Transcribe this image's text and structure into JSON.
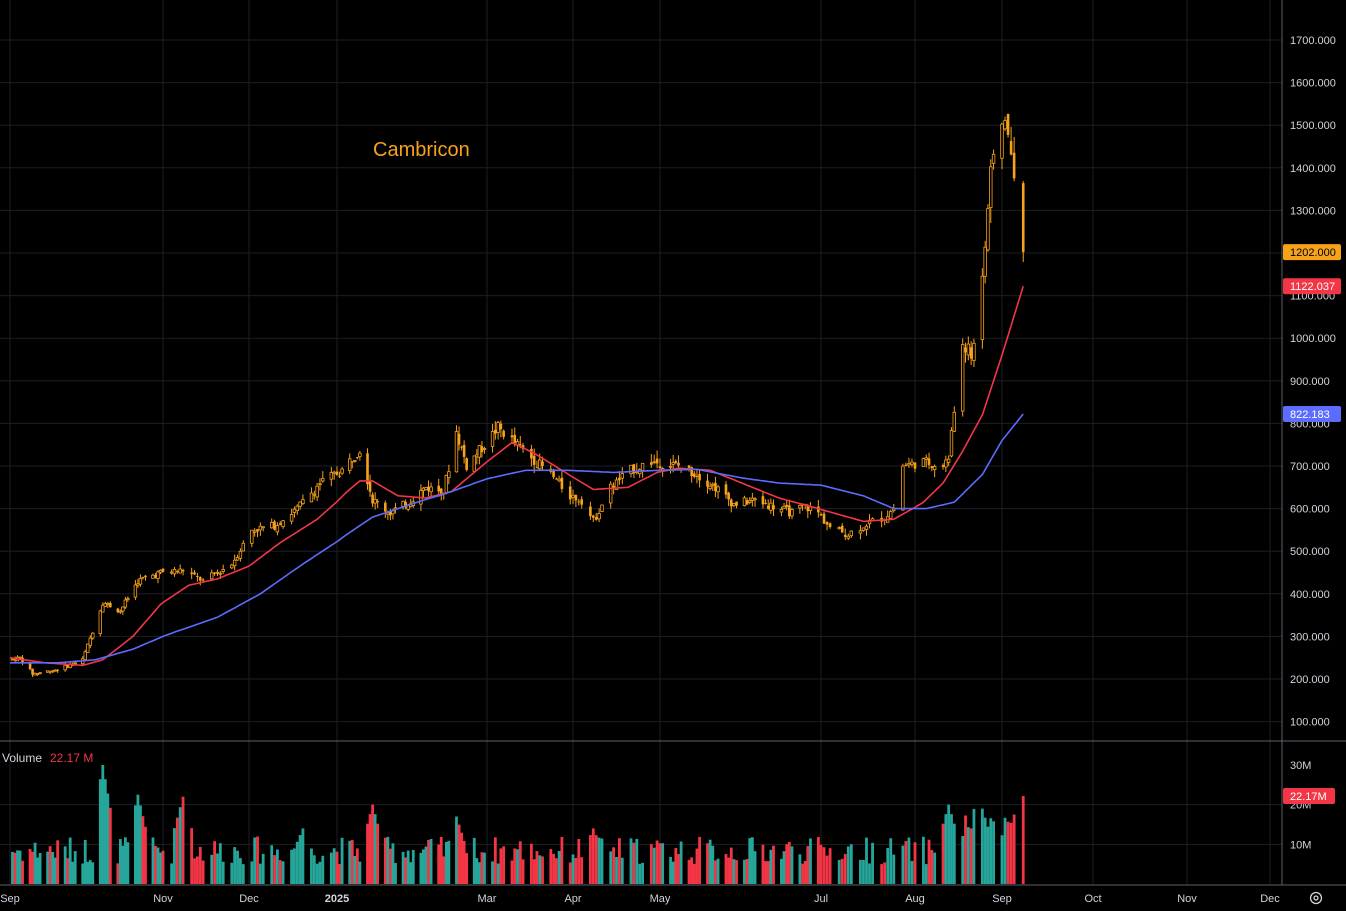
{
  "chart_data": {
    "type": "candlestick",
    "title": "Cambricon",
    "price_axis": {
      "ticks": [
        "1700.000",
        "1600.000",
        "1500.000",
        "1400.000",
        "1300.000",
        "1200.000",
        "1100.000",
        "1000.000",
        "900.000",
        "800.000",
        "700.000",
        "600.000",
        "500.000",
        "400.000",
        "300.000",
        "200.000",
        "100.000"
      ],
      "range": [
        70,
        1780
      ]
    },
    "time_axis": {
      "labels": [
        {
          "text": "Sep",
          "date": "2024-09-01",
          "bold": false
        },
        {
          "text": "Nov",
          "date": "2024-11-01",
          "bold": false
        },
        {
          "text": "Dec",
          "date": "2024-12-01",
          "bold": false
        },
        {
          "text": "2025",
          "date": "2025-01-01",
          "bold": true
        },
        {
          "text": "Mar",
          "date": "2025-03-01",
          "bold": false
        },
        {
          "text": "Apr",
          "date": "2025-04-01",
          "bold": false
        },
        {
          "text": "May",
          "date": "2025-05-01",
          "bold": false
        },
        {
          "text": "Jul",
          "date": "2025-07-01",
          "bold": false
        },
        {
          "text": "Aug",
          "date": "2025-08-01",
          "bold": false
        },
        {
          "text": "Sep",
          "date": "2025-09-01",
          "bold": false
        },
        {
          "text": "Oct",
          "date": "2025-10-01",
          "bold": false
        },
        {
          "text": "Nov",
          "date": "2025-11-01",
          "bold": false
        },
        {
          "text": "Dec",
          "date": "2025-12-01",
          "bold": false
        }
      ]
    },
    "price_path": [
      [
        "2024-09-01",
        245
      ],
      [
        "2024-09-05",
        250
      ],
      [
        "2024-09-10",
        212
      ],
      [
        "2024-09-20",
        222
      ],
      [
        "2024-09-30",
        245
      ],
      [
        "2024-10-08",
        380
      ],
      [
        "2024-10-15",
        360
      ],
      [
        "2024-10-22",
        430
      ],
      [
        "2024-10-31",
        450
      ],
      [
        "2024-11-08",
        455
      ],
      [
        "2024-11-15",
        430
      ],
      [
        "2024-11-25",
        470
      ],
      [
        "2024-12-02",
        550
      ],
      [
        "2024-12-10",
        560
      ],
      [
        "2024-12-18",
        600
      ],
      [
        "2024-12-26",
        660
      ],
      [
        "2025-01-03",
        690
      ],
      [
        "2025-01-10",
        740
      ],
      [
        "2025-01-15",
        620
      ],
      [
        "2025-01-22",
        590
      ],
      [
        "2025-01-28",
        610
      ],
      [
        "2025-02-05",
        650
      ],
      [
        "2025-02-12",
        640
      ],
      [
        "2025-02-17",
        780
      ],
      [
        "2025-02-21",
        700
      ],
      [
        "2025-02-28",
        750
      ],
      [
        "2025-03-05",
        790
      ],
      [
        "2025-03-10",
        760
      ],
      [
        "2025-03-17",
        720
      ],
      [
        "2025-03-24",
        680
      ],
      [
        "2025-03-31",
        630
      ],
      [
        "2025-04-04",
        620
      ],
      [
        "2025-04-08",
        570
      ],
      [
        "2025-04-14",
        650
      ],
      [
        "2025-04-21",
        690
      ],
      [
        "2025-04-28",
        710
      ],
      [
        "2025-05-08",
        700
      ],
      [
        "2025-05-15",
        680
      ],
      [
        "2025-05-22",
        650
      ],
      [
        "2025-05-29",
        610
      ],
      [
        "2025-06-06",
        620
      ],
      [
        "2025-06-13",
        605
      ],
      [
        "2025-06-20",
        590
      ],
      [
        "2025-06-25",
        605
      ],
      [
        "2025-06-30",
        590
      ],
      [
        "2025-07-04",
        555
      ],
      [
        "2025-07-10",
        540
      ],
      [
        "2025-07-16",
        565
      ],
      [
        "2025-07-22",
        580
      ],
      [
        "2025-07-25",
        600
      ],
      [
        "2025-07-28",
        700
      ],
      [
        "2025-08-04",
        710
      ],
      [
        "2025-08-11",
        700
      ],
      [
        "2025-08-13",
        720
      ],
      [
        "2025-08-15",
        830
      ],
      [
        "2025-08-18",
        990
      ],
      [
        "2025-08-21",
        960
      ],
      [
        "2025-08-24",
        1060
      ],
      [
        "2025-08-26",
        1230
      ],
      [
        "2025-08-28",
        1380
      ],
      [
        "2025-08-31",
        1480
      ],
      [
        "2025-09-02",
        1520
      ],
      [
        "2025-09-04",
        1430
      ],
      [
        "2025-09-05",
        1370
      ],
      [
        "2025-09-08",
        1202
      ]
    ],
    "series": [
      {
        "kind": "candles",
        "color": "#f7a21b"
      },
      {
        "name": "",
        "kind": "ma_fast",
        "color": "#f23645",
        "last_value": "1122.037"
      },
      {
        "name": "",
        "kind": "ma_slow",
        "color": "#5b6cff",
        "last_value": "822.183"
      }
    ],
    "ma_fast": [
      [
        "2024-09-01",
        250
      ],
      [
        "2024-09-15",
        238
      ],
      [
        "2024-09-30",
        232
      ],
      [
        "2024-10-08",
        245
      ],
      [
        "2024-10-20",
        300
      ],
      [
        "2024-10-31",
        375
      ],
      [
        "2024-11-10",
        420
      ],
      [
        "2024-11-20",
        435
      ],
      [
        "2024-12-01",
        465
      ],
      [
        "2024-12-12",
        520
      ],
      [
        "2024-12-25",
        575
      ],
      [
        "2025-01-05",
        640
      ],
      [
        "2025-01-10",
        665
      ],
      [
        "2025-01-15",
        665
      ],
      [
        "2025-01-25",
        630
      ],
      [
        "2025-02-05",
        625
      ],
      [
        "2025-02-15",
        640
      ],
      [
        "2025-02-25",
        690
      ],
      [
        "2025-03-05",
        730
      ],
      [
        "2025-03-10",
        755
      ],
      [
        "2025-03-18",
        730
      ],
      [
        "2025-03-28",
        690
      ],
      [
        "2025-04-08",
        645
      ],
      [
        "2025-04-20",
        650
      ],
      [
        "2025-04-30",
        685
      ],
      [
        "2025-05-08",
        695
      ],
      [
        "2025-05-20",
        690
      ],
      [
        "2025-06-01",
        660
      ],
      [
        "2025-06-15",
        625
      ],
      [
        "2025-06-30",
        600
      ],
      [
        "2025-07-15",
        570
      ],
      [
        "2025-07-25",
        575
      ],
      [
        "2025-08-04",
        615
      ],
      [
        "2025-08-11",
        660
      ],
      [
        "2025-08-18",
        735
      ],
      [
        "2025-08-25",
        820
      ],
      [
        "2025-09-01",
        960
      ],
      [
        "2025-09-08",
        1122
      ]
    ],
    "ma_slow": [
      [
        "2024-09-01",
        238
      ],
      [
        "2024-09-20",
        238
      ],
      [
        "2024-10-05",
        245
      ],
      [
        "2024-10-20",
        270
      ],
      [
        "2024-11-05",
        310
      ],
      [
        "2024-11-20",
        345
      ],
      [
        "2024-12-05",
        400
      ],
      [
        "2024-12-20",
        470
      ],
      [
        "2025-01-05",
        540
      ],
      [
        "2025-01-15",
        580
      ],
      [
        "2025-01-30",
        610
      ],
      [
        "2025-02-15",
        640
      ],
      [
        "2025-03-01",
        670
      ],
      [
        "2025-03-15",
        690
      ],
      [
        "2025-03-30",
        690
      ],
      [
        "2025-04-15",
        685
      ],
      [
        "2025-05-01",
        690
      ],
      [
        "2025-05-15",
        692
      ],
      [
        "2025-06-01",
        672
      ],
      [
        "2025-06-15",
        660
      ],
      [
        "2025-07-01",
        655
      ],
      [
        "2025-07-15",
        630
      ],
      [
        "2025-07-25",
        600
      ],
      [
        "2025-08-05",
        600
      ],
      [
        "2025-08-15",
        615
      ],
      [
        "2025-08-25",
        680
      ],
      [
        "2025-09-01",
        760
      ],
      [
        "2025-09-08",
        822
      ]
    ],
    "last_price": "1202.000",
    "volume": {
      "title": "Volume",
      "last_value": "22.17 M",
      "axis_ticks": [
        "30M",
        "20M",
        "10M"
      ],
      "range": [
        0,
        31.5
      ],
      "up_color": "#26a69a",
      "down_color": "#f23645",
      "last_badge": "22.17M",
      "peaks": [
        [
          "2024-10-08",
          30.0
        ],
        [
          "2024-10-22",
          22.5
        ],
        [
          "2024-11-08",
          22.0
        ],
        [
          "2024-12-20",
          14.0
        ],
        [
          "2025-01-15",
          20.0
        ],
        [
          "2025-02-17",
          17.0
        ],
        [
          "2025-04-08",
          14.0
        ],
        [
          "2025-08-13",
          20.0
        ],
        [
          "2025-08-25",
          19.0
        ],
        [
          "2025-09-05",
          17.5
        ],
        [
          "2025-09-08",
          22.17
        ]
      ]
    }
  },
  "ui": {
    "settings_icon": "gear-icon"
  }
}
